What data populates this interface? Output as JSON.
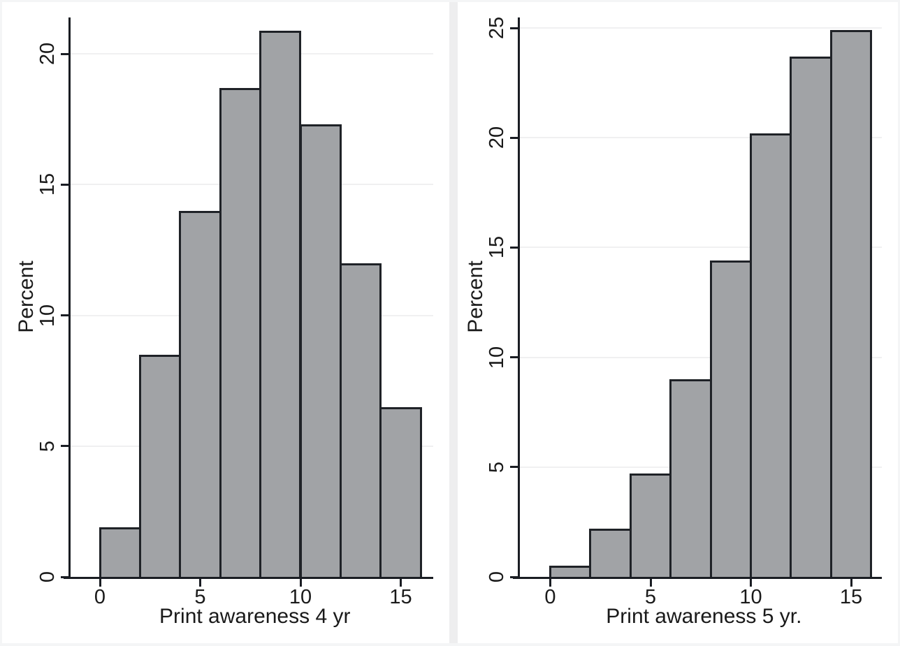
{
  "figure": {
    "kind": "stata-style two-panel histogram figure"
  },
  "colors": {
    "bar_fill": "#a1a3a6",
    "bar_border": "#1f2227",
    "axis_line": "#1a1d23",
    "gridline": "#f0f0f1",
    "text": "#1a1a1a",
    "background": "#ffffff",
    "figure_border": "#f4f5f6",
    "panel_divider": "#eeeeef"
  },
  "chart_data": [
    {
      "type": "bar",
      "subtype": "histogram",
      "xlabel": "Print awareness 4 yr",
      "ylabel": "Percent",
      "x_range": [
        0,
        16
      ],
      "bin_width": 2,
      "xticks": [
        0,
        5,
        10,
        15
      ],
      "yticks": [
        0,
        5,
        10,
        15,
        20
      ],
      "ylim": [
        0,
        21.4
      ],
      "grid": "horizontal",
      "legend": "none",
      "bins": [
        {
          "range": [
            0,
            2
          ],
          "percent": 1.9
        },
        {
          "range": [
            2,
            4
          ],
          "percent": 8.5
        },
        {
          "range": [
            4,
            6
          ],
          "percent": 14.0
        },
        {
          "range": [
            6,
            8
          ],
          "percent": 18.7
        },
        {
          "range": [
            8,
            10
          ],
          "percent": 20.9
        },
        {
          "range": [
            10,
            12
          ],
          "percent": 17.3
        },
        {
          "range": [
            12,
            14
          ],
          "percent": 12.0
        },
        {
          "range": [
            14,
            16
          ],
          "percent": 6.5
        }
      ]
    },
    {
      "type": "bar",
      "subtype": "histogram",
      "xlabel": "Print awareness 5 yr.",
      "ylabel": "Percent",
      "x_range": [
        0,
        16
      ],
      "bin_width": 2,
      "xticks": [
        0,
        5,
        10,
        15
      ],
      "yticks": [
        0,
        5,
        10,
        15,
        20,
        25
      ],
      "ylim": [
        0,
        25.5
      ],
      "grid": "horizontal",
      "legend": "none",
      "bins": [
        {
          "range": [
            0,
            2
          ],
          "percent": 0.5
        },
        {
          "range": [
            2,
            4
          ],
          "percent": 2.2
        },
        {
          "range": [
            4,
            6
          ],
          "percent": 4.7
        },
        {
          "range": [
            6,
            8
          ],
          "percent": 9.0
        },
        {
          "range": [
            8,
            10
          ],
          "percent": 14.4
        },
        {
          "range": [
            10,
            12
          ],
          "percent": 20.2
        },
        {
          "range": [
            12,
            14
          ],
          "percent": 23.7
        },
        {
          "range": [
            14,
            16
          ],
          "percent": 24.9
        }
      ]
    }
  ]
}
